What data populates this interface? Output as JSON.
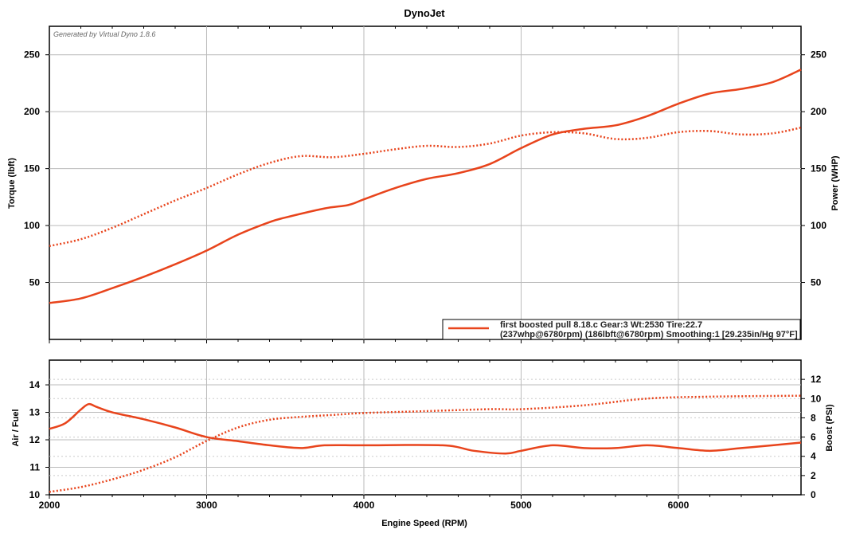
{
  "chart_data": [
    {
      "type": "line",
      "title": "DynoJet",
      "watermark": "Generated by Virtual Dyno 1.8.6",
      "xlabel": "Engine Speed (RPM)",
      "ylabel": "Torque (lbft)",
      "y2label": "Power (WHP)",
      "xlim": [
        2000,
        6780
      ],
      "ylim": [
        0,
        275
      ],
      "y2lim": [
        0,
        275
      ],
      "xticks": [
        3000,
        4000,
        5000,
        6000
      ],
      "yticks": [
        50,
        100,
        150,
        200,
        250
      ],
      "y2ticks": [
        50,
        100,
        150,
        200,
        250
      ],
      "grid": true,
      "legend_position": "bottom-right",
      "legend": [
        "first boosted pull 8.18.c Gear:3 Wt:2530 Tire:22.7",
        "(237whp@6780rpm) (186lbft@6780rpm) Smoothing:1 [29.235in/Hg 97°F]"
      ],
      "series": [
        {
          "name": "Power (WHP)",
          "style": "solid",
          "color": "#e8441c",
          "x": [
            2000,
            2200,
            2400,
            2600,
            2800,
            3000,
            3200,
            3400,
            3500,
            3750,
            3900,
            4000,
            4200,
            4400,
            4600,
            4800,
            5000,
            5200,
            5400,
            5600,
            5800,
            6000,
            6200,
            6400,
            6600,
            6780
          ],
          "y": [
            32,
            36,
            45,
            55,
            66,
            78,
            92,
            103,
            107,
            115,
            118,
            123,
            133,
            141,
            146,
            154,
            168,
            180,
            185,
            188,
            196,
            207,
            216,
            220,
            226,
            237
          ]
        },
        {
          "name": "Torque (lbft)",
          "style": "dotted",
          "color": "#e8441c",
          "x": [
            2000,
            2200,
            2400,
            2600,
            2800,
            3000,
            3200,
            3400,
            3600,
            3800,
            4000,
            4200,
            4400,
            4600,
            4800,
            5000,
            5200,
            5400,
            5600,
            5800,
            6000,
            6200,
            6400,
            6600,
            6780
          ],
          "y": [
            82,
            88,
            98,
            110,
            122,
            133,
            145,
            155,
            161,
            160,
            163,
            167,
            170,
            169,
            172,
            179,
            182,
            181,
            176,
            177,
            182,
            183,
            180,
            181,
            186
          ]
        }
      ]
    },
    {
      "type": "line",
      "xlabel": "Engine Speed (RPM)",
      "ylabel": "Air / Fuel",
      "y2label": "Boost (PSI)",
      "xlim": [
        2000,
        6780
      ],
      "xticks": [
        2000,
        3000,
        4000,
        5000,
        6000
      ],
      "ylim": [
        10,
        14.9
      ],
      "yticks": [
        10,
        11,
        12,
        13,
        14
      ],
      "y2lim": [
        0,
        14
      ],
      "y2ticks": [
        0,
        2,
        4,
        6,
        8,
        10,
        12
      ],
      "grid": true,
      "series": [
        {
          "name": "Air / Fuel",
          "style": "solid",
          "color": "#e8441c",
          "axis": "left",
          "x": [
            2000,
            2100,
            2200,
            2250,
            2300,
            2400,
            2600,
            2800,
            3000,
            3200,
            3400,
            3600,
            3750,
            4000,
            4500,
            4700,
            4900,
            5000,
            5200,
            5400,
            5600,
            5800,
            6000,
            6200,
            6400,
            6600,
            6780
          ],
          "y": [
            12.4,
            12.6,
            13.1,
            13.3,
            13.2,
            13.0,
            12.75,
            12.45,
            12.1,
            11.95,
            11.8,
            11.7,
            11.8,
            11.8,
            11.8,
            11.6,
            11.5,
            11.6,
            11.8,
            11.7,
            11.7,
            11.8,
            11.7,
            11.6,
            11.7,
            11.8,
            11.9
          ]
        },
        {
          "name": "Boost (PSI)",
          "style": "dotted",
          "color": "#e8441c",
          "axis": "right",
          "x": [
            2000,
            2200,
            2400,
            2600,
            2800,
            3000,
            3200,
            3400,
            3600,
            3800,
            4000,
            4400,
            4800,
            5000,
            5400,
            5800,
            6200,
            6780
          ],
          "y": [
            0.3,
            0.8,
            1.6,
            2.6,
            3.9,
            5.6,
            7.0,
            7.8,
            8.1,
            8.3,
            8.5,
            8.7,
            8.9,
            8.9,
            9.3,
            10.0,
            10.2,
            10.3
          ]
        }
      ]
    }
  ]
}
